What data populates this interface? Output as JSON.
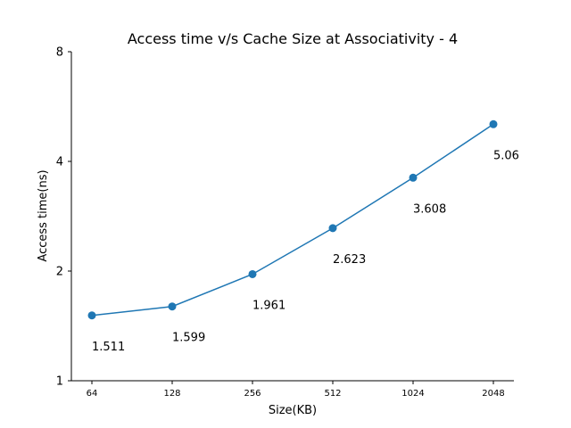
{
  "chart_data": {
    "type": "line",
    "title": "Access time v/s Cache Size at Associativity - 4",
    "xlabel": "Size(KB)",
    "ylabel": "Access time(ns)",
    "y_scale": "log2",
    "ylim": [
      1,
      8
    ],
    "yticks": [
      "1",
      "2",
      "4",
      "8"
    ],
    "categories": [
      "64",
      "128",
      "256",
      "512",
      "1024",
      "2048"
    ],
    "values": [
      1.511,
      1.599,
      1.961,
      2.623,
      3.608,
      5.06
    ],
    "data_labels": [
      "1.511",
      "1.599",
      "1.961",
      "2.623",
      "3.608",
      "5.06"
    ],
    "color": "#1f77b4",
    "grid": false,
    "markers": "circle"
  }
}
